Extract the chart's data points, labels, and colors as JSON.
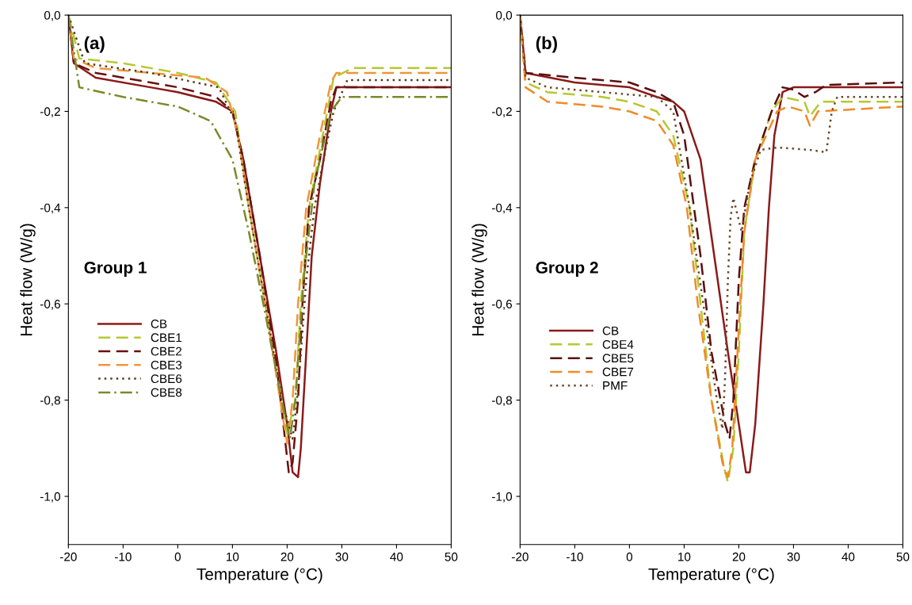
{
  "chart_data": [
    {
      "type": "line",
      "xlabel": "Temperature (°C)",
      "ylabel": "Heat flow (W/g)",
      "annotations": [
        "(a)",
        "Group 1"
      ],
      "legend": "left",
      "grid": false,
      "xlim": [
        -20,
        50
      ],
      "xticks": [
        -20,
        -10,
        0,
        10,
        20,
        30,
        40,
        50
      ],
      "ylim": [
        -1.1,
        0.0
      ],
      "yticks": [
        {
          "value": 0.0,
          "label": "0,0"
        },
        {
          "value": -0.2,
          "label": "-0,2"
        },
        {
          "value": -0.4,
          "label": "-0,4"
        },
        {
          "value": -0.6,
          "label": "-0,6"
        },
        {
          "value": -0.8,
          "label": "-0,8"
        },
        {
          "value": -1.0,
          "label": "-1,0"
        }
      ],
      "series": [
        {
          "name": "CB",
          "color": "#8b1a1a",
          "line_style": "solid",
          "x": [
            -20,
            -19,
            -15,
            -5,
            0,
            7,
            10,
            12,
            15,
            18,
            20,
            21,
            22,
            22.5,
            23.5,
            24.5,
            26,
            28,
            29,
            50
          ],
          "values": [
            0.0,
            -0.1,
            -0.13,
            -0.15,
            -0.16,
            -0.18,
            -0.2,
            -0.3,
            -0.5,
            -0.7,
            -0.85,
            -0.95,
            -0.96,
            -0.9,
            -0.7,
            -0.5,
            -0.35,
            -0.2,
            -0.15,
            -0.15
          ]
        },
        {
          "name": "CBE1",
          "color": "#b5c832",
          "line_style": "dashed",
          "x": [
            -20,
            -18,
            -10,
            0,
            7,
            10.5,
            13,
            16,
            19,
            20,
            21.5,
            22.5,
            24,
            26.5,
            28.5,
            32,
            50
          ],
          "values": [
            0.0,
            -0.09,
            -0.1,
            -0.12,
            -0.14,
            -0.2,
            -0.4,
            -0.6,
            -0.8,
            -0.87,
            -0.8,
            -0.6,
            -0.4,
            -0.25,
            -0.13,
            -0.11,
            -0.11
          ]
        },
        {
          "name": "CBE2",
          "color": "#6b1010",
          "line_style": "dashed",
          "x": [
            -20,
            -19,
            -15,
            -5,
            0,
            7,
            10,
            12,
            15,
            18,
            20.3,
            21,
            22,
            22.8,
            24,
            26,
            28,
            29,
            50
          ],
          "values": [
            0.0,
            -0.1,
            -0.12,
            -0.14,
            -0.15,
            -0.17,
            -0.2,
            -0.3,
            -0.5,
            -0.72,
            -0.95,
            -0.93,
            -0.8,
            -0.6,
            -0.4,
            -0.3,
            -0.18,
            -0.15,
            -0.15
          ]
        },
        {
          "name": "CBE3",
          "color": "#f0953a",
          "line_style": "dashed",
          "x": [
            -20,
            -19,
            -15,
            -5,
            5,
            9,
            11,
            13,
            16,
            19,
            20,
            21,
            22,
            23.5,
            26,
            28,
            29,
            50
          ],
          "values": [
            0.0,
            -0.09,
            -0.11,
            -0.12,
            -0.13,
            -0.16,
            -0.25,
            -0.4,
            -0.6,
            -0.82,
            -0.89,
            -0.8,
            -0.6,
            -0.4,
            -0.25,
            -0.14,
            -0.12,
            -0.12
          ]
        },
        {
          "name": "CBE6",
          "color": "#5a3a1a",
          "line_style": "dotted",
          "x": [
            -20,
            -17,
            -5,
            7.5,
            10.5,
            13,
            16,
            19,
            21,
            22,
            23.5,
            25,
            27,
            28.5,
            31,
            50
          ],
          "values": [
            0.0,
            -0.1,
            -0.12,
            -0.15,
            -0.22,
            -0.4,
            -0.6,
            -0.8,
            -0.88,
            -0.78,
            -0.55,
            -0.4,
            -0.28,
            -0.2,
            -0.135,
            -0.135
          ]
        },
        {
          "name": "CBE8",
          "color": "#7a8a2a",
          "line_style": "dashdot",
          "x": [
            -20,
            -18,
            -10,
            0,
            6,
            10,
            13,
            16,
            19,
            20.5,
            21.5,
            23,
            25,
            28,
            30,
            50
          ],
          "values": [
            0.0,
            -0.15,
            -0.17,
            -0.19,
            -0.22,
            -0.3,
            -0.45,
            -0.62,
            -0.8,
            -0.88,
            -0.8,
            -0.55,
            -0.35,
            -0.2,
            -0.17,
            -0.17
          ]
        }
      ]
    },
    {
      "type": "line",
      "xlabel": "Temperature (°C)",
      "ylabel": "Heat flow (W/g)",
      "annotations": [
        "(b)",
        "Group 2"
      ],
      "legend": "left",
      "grid": false,
      "xlim": [
        -20,
        50
      ],
      "xticks": [
        -20,
        -10,
        0,
        10,
        20,
        30,
        40,
        50
      ],
      "ylim": [
        -1.1,
        0.0
      ],
      "yticks": [
        {
          "value": 0.0,
          "label": "0,0"
        },
        {
          "value": -0.2,
          "label": "-0,2"
        },
        {
          "value": -0.4,
          "label": "-0,4"
        },
        {
          "value": -0.6,
          "label": "-0,6"
        },
        {
          "value": -0.8,
          "label": "-0,8"
        },
        {
          "value": -1.0,
          "label": "-1,0"
        }
      ],
      "series": [
        {
          "name": "CB",
          "color": "#8b1a1a",
          "line_style": "solid",
          "x": [
            -20,
            -19,
            -10,
            0,
            5,
            8,
            10,
            13,
            15.5,
            18,
            20,
            21.3,
            22,
            23,
            24.5,
            25.5,
            26.5,
            28,
            30,
            50
          ],
          "values": [
            0.0,
            -0.12,
            -0.14,
            -0.15,
            -0.17,
            -0.18,
            -0.2,
            -0.3,
            -0.5,
            -0.7,
            -0.85,
            -0.95,
            -0.95,
            -0.85,
            -0.6,
            -0.4,
            -0.25,
            -0.16,
            -0.15,
            -0.15
          ]
        },
        {
          "name": "CBE4",
          "color": "#b5c832",
          "line_style": "dashed",
          "x": [
            -20,
            -19,
            -15,
            -5,
            0,
            5,
            8,
            11,
            13,
            15,
            17.5,
            18,
            19,
            20,
            21,
            23,
            26,
            28,
            32,
            33,
            35,
            50
          ],
          "values": [
            0.0,
            -0.14,
            -0.16,
            -0.17,
            -0.18,
            -0.2,
            -0.25,
            -0.4,
            -0.6,
            -0.8,
            -0.95,
            -0.97,
            -0.9,
            -0.7,
            -0.45,
            -0.3,
            -0.2,
            -0.17,
            -0.18,
            -0.21,
            -0.18,
            -0.18
          ]
        },
        {
          "name": "CBE5",
          "color": "#5a0f0f",
          "line_style": "dashed",
          "x": [
            -20,
            -19,
            -10,
            0,
            5,
            8,
            10,
            13,
            15,
            17.5,
            18.3,
            19,
            20,
            21,
            23,
            26,
            28,
            30,
            32,
            34,
            36,
            50
          ],
          "values": [
            0.0,
            -0.12,
            -0.13,
            -0.14,
            -0.16,
            -0.18,
            -0.25,
            -0.5,
            -0.7,
            -0.85,
            -0.88,
            -0.8,
            -0.55,
            -0.4,
            -0.3,
            -0.2,
            -0.15,
            -0.155,
            -0.17,
            -0.16,
            -0.145,
            -0.14
          ]
        },
        {
          "name": "CBE7",
          "color": "#f08a2a",
          "line_style": "dashed",
          "x": [
            -20,
            -19,
            -15,
            -5,
            0,
            5,
            8,
            10.5,
            12.5,
            15,
            17,
            18,
            18.8,
            20,
            21,
            23,
            27,
            29,
            32,
            33,
            34.5,
            50
          ],
          "values": [
            0.0,
            -0.15,
            -0.18,
            -0.19,
            -0.2,
            -0.22,
            -0.27,
            -0.4,
            -0.6,
            -0.8,
            -0.93,
            -0.96,
            -0.9,
            -0.65,
            -0.45,
            -0.3,
            -0.2,
            -0.19,
            -0.2,
            -0.23,
            -0.2,
            -0.19
          ]
        },
        {
          "name": "PMF",
          "color": "#6b4a2a",
          "line_style": "dotted",
          "x": [
            -20,
            -19,
            -15,
            -5,
            5,
            8,
            11,
            13.5,
            16,
            17,
            17.5,
            18,
            18.5,
            19,
            20.5,
            22,
            24,
            27,
            33,
            36,
            37,
            38,
            50
          ],
          "values": [
            0.0,
            -0.13,
            -0.15,
            -0.16,
            -0.17,
            -0.2,
            -0.4,
            -0.6,
            -0.8,
            -0.86,
            -0.75,
            -0.55,
            -0.42,
            -0.38,
            -0.45,
            -0.35,
            -0.28,
            -0.275,
            -0.28,
            -0.285,
            -0.2,
            -0.17,
            -0.17
          ]
        }
      ]
    }
  ]
}
